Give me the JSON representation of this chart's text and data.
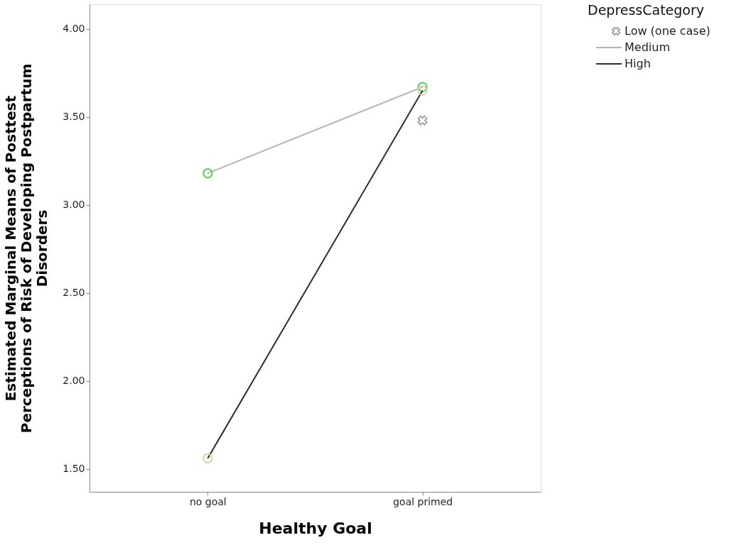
{
  "chart_data": {
    "type": "line",
    "xlabel": "Healthy Goal",
    "ylabel": "Estimated Marginal Means of Posttest\nPerceptions of Risk of Developing Postpartum\nDisorders",
    "legend_title": "DepressCategory",
    "categories": [
      "no goal",
      "goal primed"
    ],
    "ylim": [
      1.37,
      4.14
    ],
    "yticks": [
      {
        "value": 1.5,
        "label": "1.50"
      },
      {
        "value": 2.0,
        "label": "2.00"
      },
      {
        "value": 2.5,
        "label": "2.50"
      },
      {
        "value": 3.0,
        "label": "3.00"
      },
      {
        "value": 3.5,
        "label": "3.50"
      },
      {
        "value": 4.0,
        "label": "4.00"
      }
    ],
    "grid": false,
    "legend": "top right",
    "series": [
      {
        "name": "Low (one case)",
        "type": "scatter",
        "marker": "cross",
        "color": "#a6a6a6",
        "values": [
          null,
          3.48
        ]
      },
      {
        "name": "Medium",
        "marker": "circle",
        "color": "#b4b4b4",
        "colors": [
          "#5cc85c",
          "#5cc85c"
        ],
        "values": [
          3.18,
          3.67
        ]
      },
      {
        "name": "High",
        "marker": "circle",
        "color": "#2e2e2e",
        "colors": [
          "#d8d3a0",
          "#d8d3a0"
        ],
        "values": [
          1.56,
          3.65
        ]
      }
    ]
  }
}
